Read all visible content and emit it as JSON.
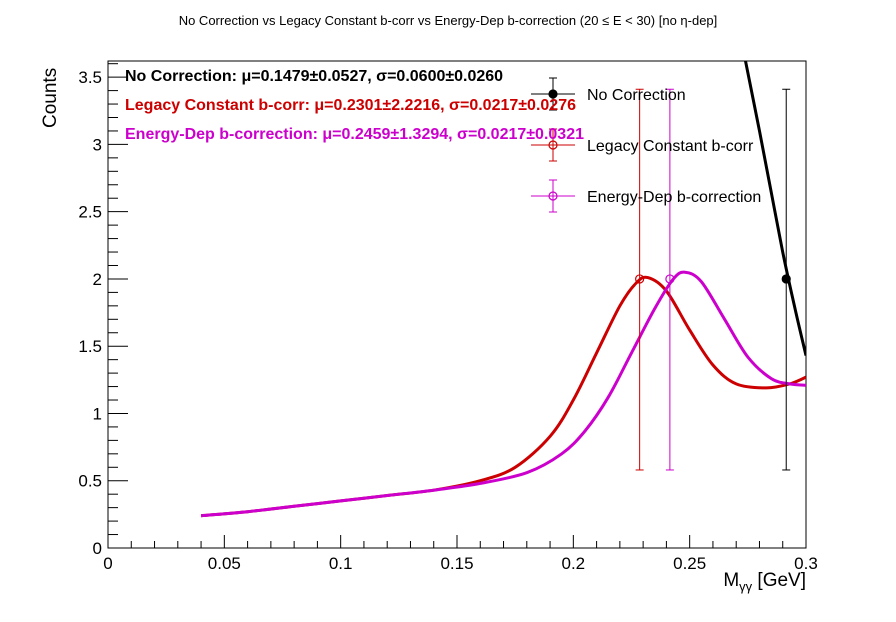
{
  "chart_data": {
    "type": "line",
    "title": "No Correction vs Legacy Constant b-corr vs Energy-Dep b-correction   (20 ≤ E < 30)   [no η-dep]",
    "xlabel_main": "M",
    "xlabel_sub": "γγ",
    "xlabel_unit": " [GeV]",
    "ylabel": "Counts",
    "xlim": [
      0,
      0.3
    ],
    "ylim": [
      0,
      3.62
    ],
    "x_ticks": [
      0,
      0.05,
      0.1,
      0.15,
      0.2,
      0.25,
      0.3
    ],
    "x_tick_labels": [
      "0",
      "0.05",
      "0.1",
      "0.15",
      "0.2",
      "0.25",
      "0.3"
    ],
    "y_ticks": [
      0,
      0.5,
      1,
      1.5,
      2,
      2.5,
      3,
      3.5
    ],
    "y_tick_labels": [
      "0",
      "0.5",
      "1",
      "1.5",
      "2",
      "2.5",
      "3",
      "3.5"
    ],
    "legend_position": "top-right",
    "series": [
      {
        "name": "No Correction",
        "color": "#000000",
        "marker": "filled-circle",
        "points": [
          {
            "x": 0.2915,
            "y": 2.0,
            "err_low": 1.42,
            "err_high": 1.41
          }
        ],
        "fit_curve": [
          [
            0.274,
            3.62
          ],
          [
            0.28,
            3.1
          ],
          [
            0.285,
            2.65
          ],
          [
            0.29,
            2.2
          ],
          [
            0.295,
            1.8
          ],
          [
            0.3,
            1.43
          ]
        ],
        "stat_label": "No Correction:",
        "stat_values": "μ=0.1479±0.0527, σ=0.0600±0.0260"
      },
      {
        "name": "Legacy Constant b-corr",
        "color": "#cc0000",
        "marker": "open-circle",
        "points": [
          {
            "x": 0.2285,
            "y": 2.0,
            "err_low": 1.42,
            "err_high": 1.41
          }
        ],
        "fit_curve": [
          [
            0.04,
            0.24
          ],
          [
            0.06,
            0.27
          ],
          [
            0.08,
            0.31
          ],
          [
            0.1,
            0.35
          ],
          [
            0.12,
            0.39
          ],
          [
            0.14,
            0.43
          ],
          [
            0.16,
            0.5
          ],
          [
            0.175,
            0.6
          ],
          [
            0.19,
            0.83
          ],
          [
            0.2,
            1.1
          ],
          [
            0.21,
            1.45
          ],
          [
            0.22,
            1.8
          ],
          [
            0.227,
            1.97
          ],
          [
            0.232,
            2.01
          ],
          [
            0.24,
            1.91
          ],
          [
            0.25,
            1.62
          ],
          [
            0.26,
            1.36
          ],
          [
            0.27,
            1.22
          ],
          [
            0.283,
            1.19
          ],
          [
            0.293,
            1.22
          ],
          [
            0.3,
            1.27
          ]
        ],
        "stat_label": "Legacy Constant b-corr:",
        "stat_values": "μ=0.2301±2.2216, σ=0.0217±0.0276"
      },
      {
        "name": "Energy-Dep b-correction",
        "color": "#cc00cc",
        "marker": "open-circle",
        "points": [
          {
            "x": 0.2415,
            "y": 2.0,
            "err_low": 1.42,
            "err_high": 1.41
          }
        ],
        "fit_curve": [
          [
            0.04,
            0.24
          ],
          [
            0.06,
            0.27
          ],
          [
            0.08,
            0.31
          ],
          [
            0.1,
            0.35
          ],
          [
            0.12,
            0.39
          ],
          [
            0.14,
            0.43
          ],
          [
            0.16,
            0.48
          ],
          [
            0.18,
            0.56
          ],
          [
            0.195,
            0.7
          ],
          [
            0.205,
            0.87
          ],
          [
            0.215,
            1.12
          ],
          [
            0.225,
            1.45
          ],
          [
            0.235,
            1.78
          ],
          [
            0.243,
            2.0
          ],
          [
            0.248,
            2.05
          ],
          [
            0.255,
            1.98
          ],
          [
            0.265,
            1.7
          ],
          [
            0.275,
            1.42
          ],
          [
            0.285,
            1.26
          ],
          [
            0.293,
            1.22
          ],
          [
            0.3,
            1.21
          ]
        ],
        "stat_label": "Energy-Dep b-correction:",
        "stat_values": "μ=0.2459±1.3294, σ=0.0217±0.0321"
      }
    ]
  }
}
